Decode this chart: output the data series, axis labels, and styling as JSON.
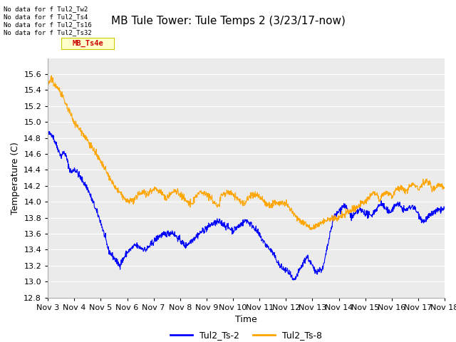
{
  "title": "MB Tule Tower: Tule Temps 2 (3/23/17-now)",
  "xlabel": "Time",
  "ylabel": "Temperature (C)",
  "ylim": [
    12.8,
    15.8
  ],
  "xlim": [
    0,
    15
  ],
  "xtick_labels": [
    "Nov 3",
    "Nov 4",
    "Nov 5",
    "Nov 6",
    "Nov 7",
    "Nov 8",
    "Nov 9",
    "Nov 10",
    "Nov 11",
    "Nov 12",
    "Nov 13",
    "Nov 14",
    "Nov 15",
    "Nov 16",
    "Nov 17",
    "Nov 18"
  ],
  "xtick_positions": [
    0,
    1,
    2,
    3,
    4,
    5,
    6,
    7,
    8,
    9,
    10,
    11,
    12,
    13,
    14,
    15
  ],
  "ytick_labels": [
    "12.8",
    "13.0",
    "13.2",
    "13.4",
    "13.6",
    "13.8",
    "14.0",
    "14.2",
    "14.4",
    "14.6",
    "14.8",
    "15.0",
    "15.2",
    "15.4",
    "15.6"
  ],
  "ytick_positions": [
    12.8,
    13.0,
    13.2,
    13.4,
    13.6,
    13.8,
    14.0,
    14.2,
    14.4,
    14.6,
    14.8,
    15.0,
    15.2,
    15.4,
    15.6
  ],
  "color_blue": "#0000ff",
  "color_orange": "#ffa500",
  "legend_labels": [
    "Tul2_Ts-2",
    "Tul2_Ts-8"
  ],
  "no_data_texts": [
    "No data for f Tul2_Tw2",
    "No data for f Tul2_Ts4",
    "No data for f Tul2_Ts16",
    "No data for f Tul2_Ts32"
  ],
  "plot_bg_color": "#ebebeb",
  "grid_color": "#ffffff",
  "title_fontsize": 11,
  "axis_fontsize": 9,
  "tick_fontsize": 8,
  "tooltip_text": "MB_Ts4e",
  "tooltip_bg": "#ffffcc",
  "tooltip_text_color": "#cc0000"
}
